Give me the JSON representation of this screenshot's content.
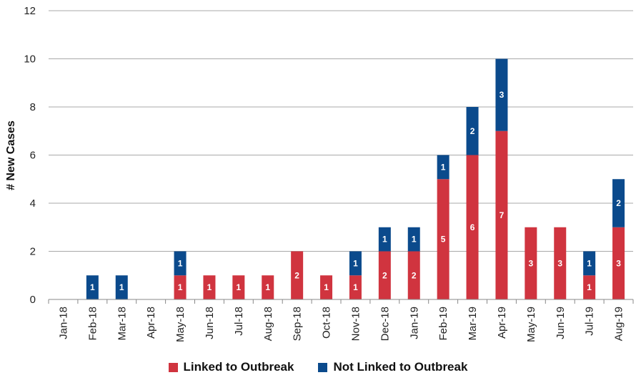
{
  "chart_data": {
    "type": "bar",
    "stacked": true,
    "categories": [
      "Jan-18",
      "Feb-18",
      "Mar-18",
      "Apr-18",
      "May-18",
      "Jun-18",
      "Jul-18",
      "Aug-18",
      "Sep-18",
      "Oct-18",
      "Nov-18",
      "Dec-18",
      "Jan-19",
      "Feb-19",
      "Mar-19",
      "Apr-19",
      "May-19",
      "Jun-19",
      "Jul-19",
      "Aug-19"
    ],
    "series": [
      {
        "name": "Linked to Outbreak",
        "color": "#d0343f",
        "values": [
          0,
          0,
          0,
          0,
          1,
          1,
          1,
          1,
          2,
          1,
          1,
          2,
          2,
          5,
          6,
          7,
          3,
          3,
          1,
          3
        ]
      },
      {
        "name": "Not Linked to Outbreak",
        "color": "#0b4a8c",
        "values": [
          0,
          1,
          1,
          0,
          1,
          0,
          0,
          0,
          0,
          0,
          1,
          1,
          1,
          1,
          2,
          3,
          0,
          0,
          1,
          2
        ]
      }
    ],
    "title": "",
    "xlabel": "",
    "ylabel": "# New Cases",
    "ylim": [
      0,
      12
    ],
    "yticks": [
      0,
      2,
      4,
      6,
      8,
      10,
      12
    ],
    "grid": true,
    "legend_position": "bottom"
  }
}
